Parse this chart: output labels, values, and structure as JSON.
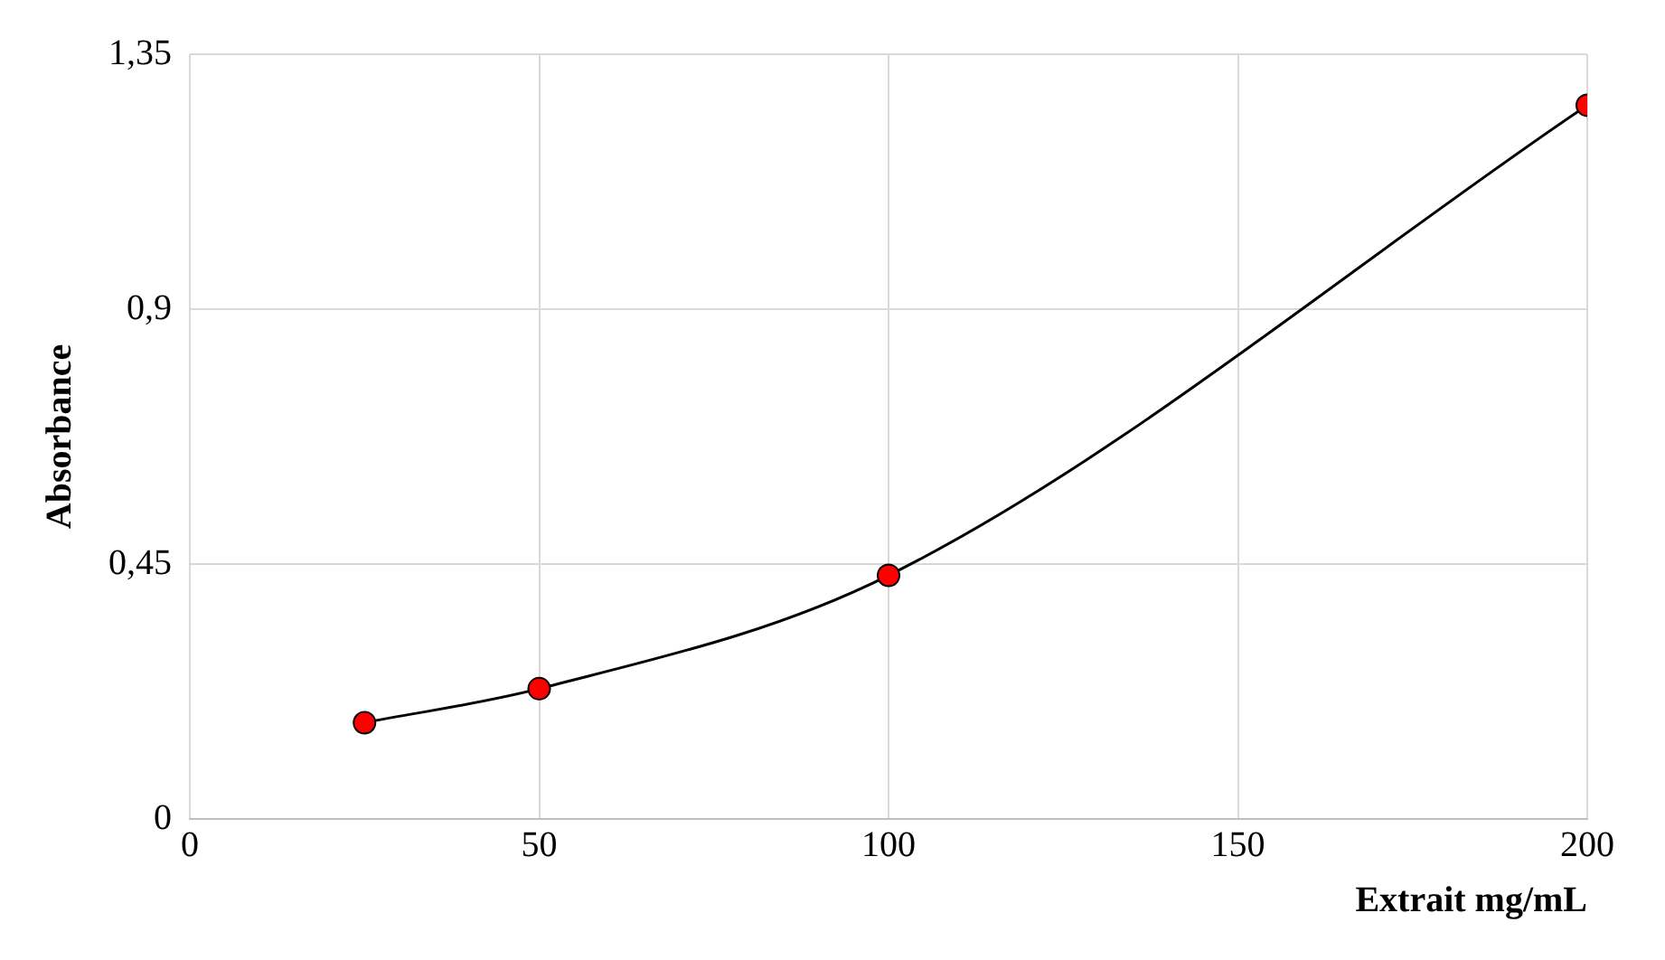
{
  "chart_data": {
    "type": "line",
    "xlabel": "Extrait mg/mL",
    "ylabel": "Absorbance",
    "x": [
      25,
      50,
      100,
      200
    ],
    "series": [
      {
        "color": "#ff0000",
        "values": [
          0.17,
          0.23,
          0.43,
          1.26
        ]
      }
    ],
    "xlim": [
      0,
      200
    ],
    "xticks": [
      0,
      50,
      100,
      150,
      200
    ],
    "ylim": [
      0,
      1.35
    ],
    "yticks": [
      {
        "value": 0,
        "label": "0"
      },
      {
        "value": 0.45,
        "label": "0,45"
      },
      {
        "value": 0.9,
        "label": "0,9"
      },
      {
        "value": 1.35,
        "label": "1,35"
      }
    ],
    "grid": true,
    "marker": "circle",
    "line_style": "solid",
    "legend": false
  }
}
